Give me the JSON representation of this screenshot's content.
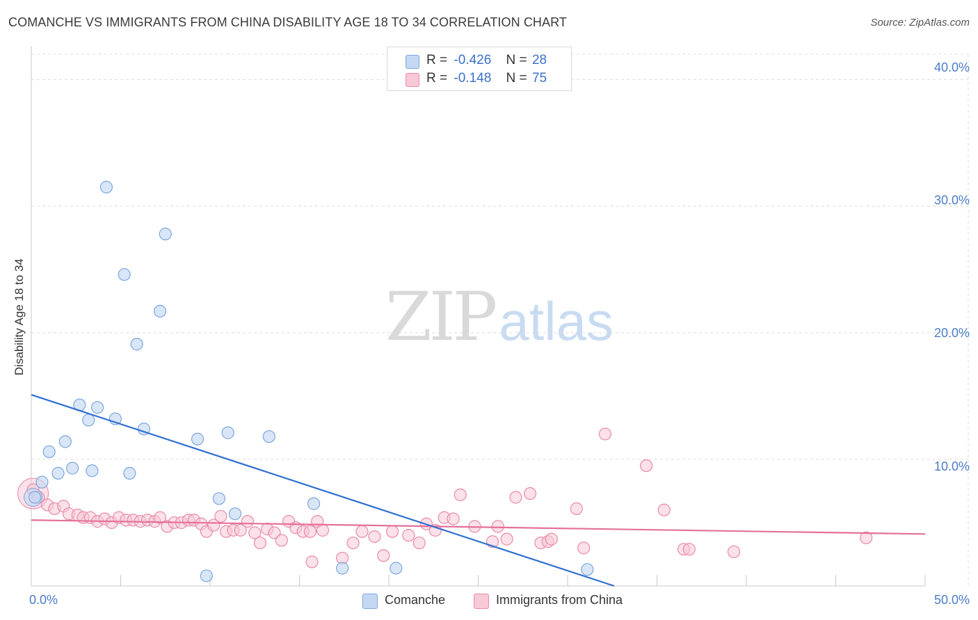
{
  "title": "COMANCHE VS IMMIGRANTS FROM CHINA DISABILITY AGE 18 TO 34 CORRELATION CHART",
  "source": "Source: ZipAtlas.com",
  "watermark": {
    "zip": "ZIP",
    "atlas": "atlas"
  },
  "legend": {
    "rows": [
      {
        "r_label": "R =",
        "r_value": "-0.426",
        "n_label": "N =",
        "n_value": "28"
      },
      {
        "r_label": "R =",
        "r_value": "-0.148",
        "n_label": "N =",
        "n_value": "75"
      }
    ]
  },
  "bottom_legend": [
    "Comanche",
    "Immigrants from China"
  ],
  "colors": {
    "comanche_fill": "#c5d8f3",
    "comanche_stroke": "#7ba6de",
    "comanche_line": "#2f6fd0",
    "china_fill": "#f8c9d7",
    "china_stroke": "#e98aa8",
    "china_line": "#e4709a",
    "grid": "#dcdcdc",
    "axis_text": "#4a7cc9"
  },
  "chart_data": {
    "type": "scatter",
    "title": "COMANCHE VS IMMIGRANTS FROM CHINA DISABILITY AGE 18 TO 34 CORRELATION CHART",
    "xlabel": "",
    "ylabel": "Disability Age 18 to 34",
    "xlim": [
      0,
      50
    ],
    "ylim": [
      0,
      42
    ],
    "x_tick_labels": [
      "0.0%",
      "50.0%"
    ],
    "y_ticks": [
      10,
      20,
      30,
      40
    ],
    "y_tick_labels": [
      "10.0%",
      "20.0%",
      "30.0%",
      "40.0%"
    ],
    "series": [
      {
        "name": "Comanche",
        "R": -0.426,
        "N": 28,
        "trend": {
          "x": [
            0,
            32.6
          ],
          "y": [
            15.1,
            0
          ]
        },
        "points": [
          [
            0.2,
            7.0
          ],
          [
            0.6,
            8.2
          ],
          [
            1.0,
            10.6
          ],
          [
            1.5,
            8.9
          ],
          [
            1.9,
            11.4
          ],
          [
            2.3,
            9.3
          ],
          [
            2.7,
            14.3
          ],
          [
            3.2,
            13.1
          ],
          [
            3.4,
            9.1
          ],
          [
            3.7,
            14.1
          ],
          [
            4.2,
            31.5
          ],
          [
            4.7,
            13.2
          ],
          [
            5.2,
            24.6
          ],
          [
            5.5,
            8.9
          ],
          [
            5.9,
            19.1
          ],
          [
            6.3,
            12.4
          ],
          [
            7.2,
            21.7
          ],
          [
            7.5,
            27.8
          ],
          [
            9.3,
            11.6
          ],
          [
            9.8,
            0.8
          ],
          [
            10.5,
            6.9
          ],
          [
            11.0,
            12.1
          ],
          [
            11.4,
            5.7
          ],
          [
            13.3,
            11.8
          ],
          [
            15.8,
            6.5
          ],
          [
            17.4,
            1.4
          ],
          [
            20.4,
            1.4
          ],
          [
            31.1,
            1.3
          ]
        ]
      },
      {
        "name": "Immigrants from China",
        "R": -0.148,
        "N": 75,
        "trend": {
          "x": [
            0,
            50
          ],
          "y": [
            5.2,
            4.1
          ]
        },
        "points": [
          [
            0.1,
            7.6
          ],
          [
            0.4,
            7.0
          ],
          [
            0.9,
            6.4
          ],
          [
            1.3,
            6.1
          ],
          [
            1.8,
            6.3
          ],
          [
            2.1,
            5.7
          ],
          [
            2.6,
            5.6
          ],
          [
            2.9,
            5.4
          ],
          [
            3.3,
            5.4
          ],
          [
            3.7,
            5.1
          ],
          [
            4.1,
            5.3
          ],
          [
            4.5,
            5.0
          ],
          [
            4.9,
            5.4
          ],
          [
            5.3,
            5.2
          ],
          [
            5.7,
            5.2
          ],
          [
            6.1,
            5.1
          ],
          [
            6.5,
            5.2
          ],
          [
            6.9,
            5.1
          ],
          [
            7.2,
            5.4
          ],
          [
            7.6,
            4.7
          ],
          [
            8.0,
            5.0
          ],
          [
            8.4,
            5.0
          ],
          [
            8.8,
            5.2
          ],
          [
            9.1,
            5.2
          ],
          [
            9.5,
            4.9
          ],
          [
            9.8,
            4.3
          ],
          [
            10.2,
            4.8
          ],
          [
            10.6,
            5.5
          ],
          [
            10.9,
            4.3
          ],
          [
            11.3,
            4.4
          ],
          [
            11.7,
            4.4
          ],
          [
            12.1,
            5.1
          ],
          [
            12.5,
            4.2
          ],
          [
            12.8,
            3.4
          ],
          [
            13.2,
            4.5
          ],
          [
            13.6,
            4.2
          ],
          [
            14.0,
            3.6
          ],
          [
            14.4,
            5.1
          ],
          [
            14.8,
            4.6
          ],
          [
            15.2,
            4.3
          ],
          [
            15.6,
            4.3
          ],
          [
            16.0,
            5.1
          ],
          [
            16.3,
            4.4
          ],
          [
            15.7,
            1.9
          ],
          [
            17.4,
            2.2
          ],
          [
            18.0,
            3.4
          ],
          [
            18.5,
            4.3
          ],
          [
            19.2,
            3.9
          ],
          [
            19.7,
            2.4
          ],
          [
            20.2,
            4.3
          ],
          [
            21.1,
            4.0
          ],
          [
            21.7,
            3.4
          ],
          [
            22.1,
            4.9
          ],
          [
            22.6,
            4.4
          ],
          [
            23.1,
            5.4
          ],
          [
            23.6,
            5.3
          ],
          [
            24.0,
            7.2
          ],
          [
            24.8,
            4.7
          ],
          [
            25.8,
            3.5
          ],
          [
            26.1,
            4.7
          ],
          [
            26.6,
            3.7
          ],
          [
            27.1,
            7.0
          ],
          [
            27.9,
            7.3
          ],
          [
            28.5,
            3.4
          ],
          [
            28.9,
            3.5
          ],
          [
            29.1,
            3.7
          ],
          [
            30.5,
            6.1
          ],
          [
            30.9,
            3.0
          ],
          [
            32.1,
            12.0
          ],
          [
            34.4,
            9.5
          ],
          [
            35.4,
            6.0
          ],
          [
            36.5,
            2.9
          ],
          [
            36.8,
            2.9
          ],
          [
            39.3,
            2.7
          ],
          [
            46.7,
            3.8
          ]
        ]
      }
    ]
  }
}
